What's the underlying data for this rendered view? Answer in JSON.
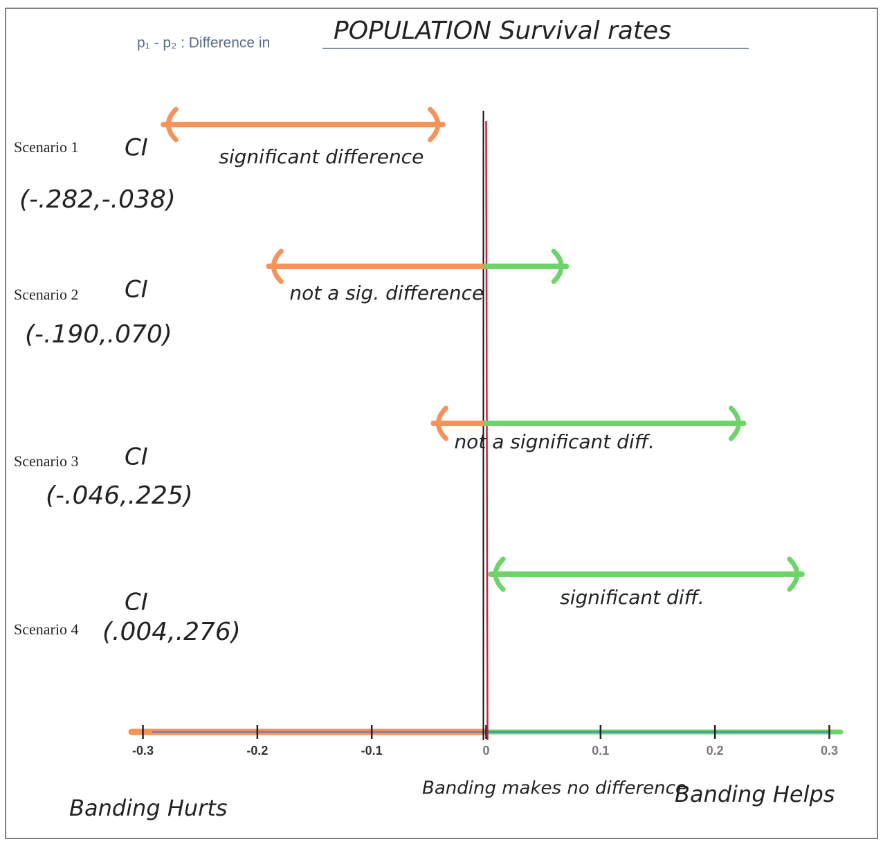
{
  "chart_data": {
    "type": "interval",
    "title": "p₁ - p₂ : Difference in",
    "subtitle": "POPULATION Survival rates",
    "xlim": [
      -0.31,
      0.31
    ],
    "xticks": [
      -0.3,
      -0.2,
      -0.1,
      0,
      0.1,
      0.2,
      0.3
    ],
    "negative_color": "#f4935a",
    "positive_color": "#6dd36a",
    "zero_line_color": "#d0203a",
    "series": [
      {
        "name": "Scenario 1",
        "ci_label": "CI",
        "values": [
          -0.282,
          -0.038
        ],
        "value_labels": "(-.282,-.038)",
        "annotation": "significant difference"
      },
      {
        "name": "Scenario 2",
        "ci_label": "CI",
        "values": [
          -0.19,
          0.07
        ],
        "value_labels": "(-.190,.070)",
        "annotation": "not a sig. difference"
      },
      {
        "name": "Scenario 3",
        "ci_label": "CI",
        "values": [
          -0.046,
          0.225
        ],
        "value_labels": "(-.046,.225)",
        "annotation": "not a significant diff."
      },
      {
        "name": "Scenario 4",
        "ci_label": "CI",
        "values": [
          0.004,
          0.276
        ],
        "value_labels": "(.004,.276)",
        "annotation": "significant diff."
      }
    ],
    "region_labels": [
      "Banding Hurts",
      "Banding makes no difference",
      "Banding Helps"
    ]
  }
}
